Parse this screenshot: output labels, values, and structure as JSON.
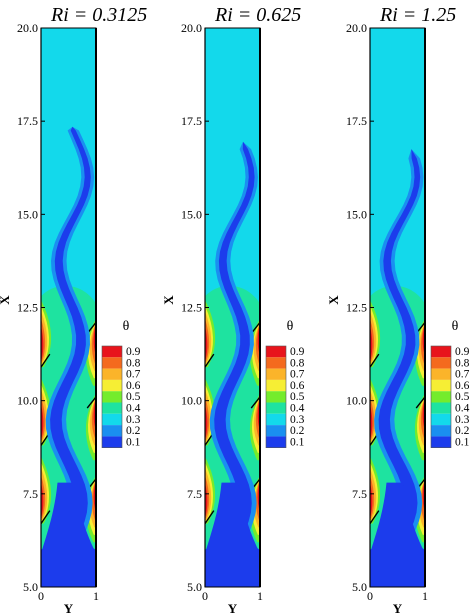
{
  "figure": {
    "panels": [
      {
        "title": "Ri = 0.3125",
        "ri": 0.3125
      },
      {
        "title": "Ri = 0.625",
        "ri": 0.625
      },
      {
        "title": "Ri = 1.25",
        "ri": 1.25
      }
    ],
    "x_axis": {
      "label": "X",
      "ticks": [
        "5.0",
        "7.5",
        "10.0",
        "12.5",
        "15.0",
        "17.5",
        "20.0"
      ],
      "range": [
        5.0,
        20.0
      ]
    },
    "y_axis": {
      "label": "Y",
      "ticks": [
        "0",
        "1"
      ],
      "range": [
        0,
        1
      ]
    },
    "legend": {
      "title": "θ",
      "levels": [
        "0.9",
        "0.8",
        "0.7",
        "0.6",
        "0.5",
        "0.4",
        "0.3",
        "0.2",
        "0.1"
      ],
      "colors": [
        "#e8141c",
        "#f46a1e",
        "#fbb42a",
        "#f6ee34",
        "#74ec2c",
        "#1ee3a0",
        "#13d9eb",
        "#1a8ff0",
        "#1c3cec"
      ]
    },
    "colors": {
      "core": "#1c3cec",
      "jet": "#1a6ff2",
      "ambient": "#13d9eb",
      "lower_band": "#1ee3a0"
    },
    "description": "Isotherm contour plots of temperature θ in a vertical channel with staggered heated ribs for three Richardson numbers"
  }
}
